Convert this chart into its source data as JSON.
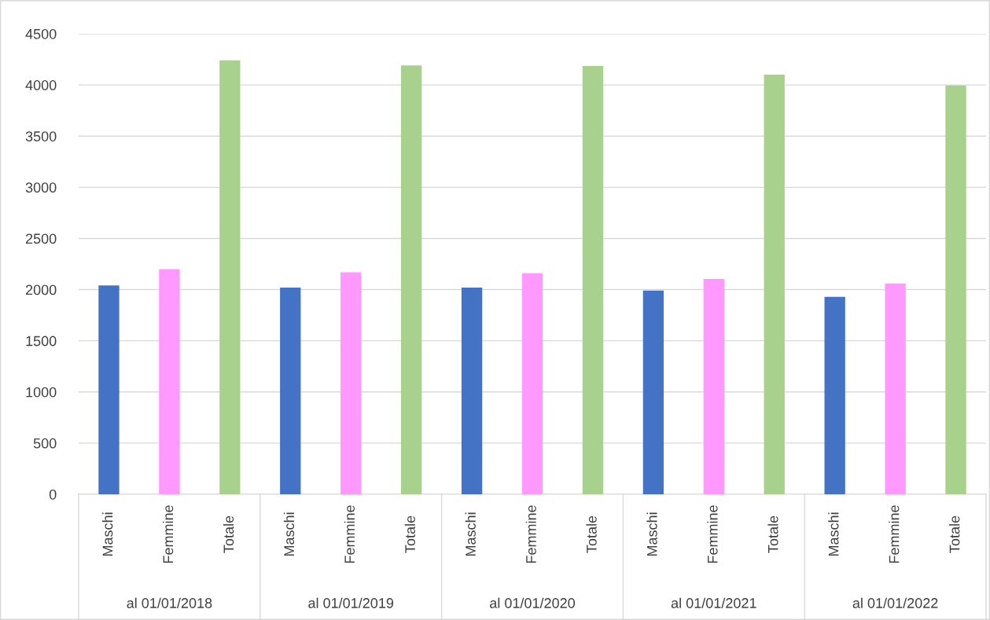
{
  "chart_data": {
    "type": "bar",
    "categories": [
      "al 01/01/2018",
      "al 01/01/2019",
      "al 01/01/2020",
      "al 01/01/2021",
      "al 01/01/2022"
    ],
    "series": [
      {
        "name": "Maschi",
        "color": "#4472c4",
        "values": [
          2040,
          2020,
          2020,
          1990,
          1930
        ]
      },
      {
        "name": "Femmine",
        "color": "#ff99ff",
        "values": [
          2200,
          2170,
          2160,
          2105,
          2060
        ]
      },
      {
        "name": "Totale",
        "color": "#a9d18e",
        "values": [
          4240,
          4190,
          4185,
          4100,
          3995
        ]
      }
    ],
    "ylim": [
      0,
      4500
    ],
    "yticks": [
      0,
      500,
      1000,
      1500,
      2000,
      2500,
      3000,
      3500,
      4000,
      4500
    ],
    "grid": "y",
    "legend": false
  }
}
